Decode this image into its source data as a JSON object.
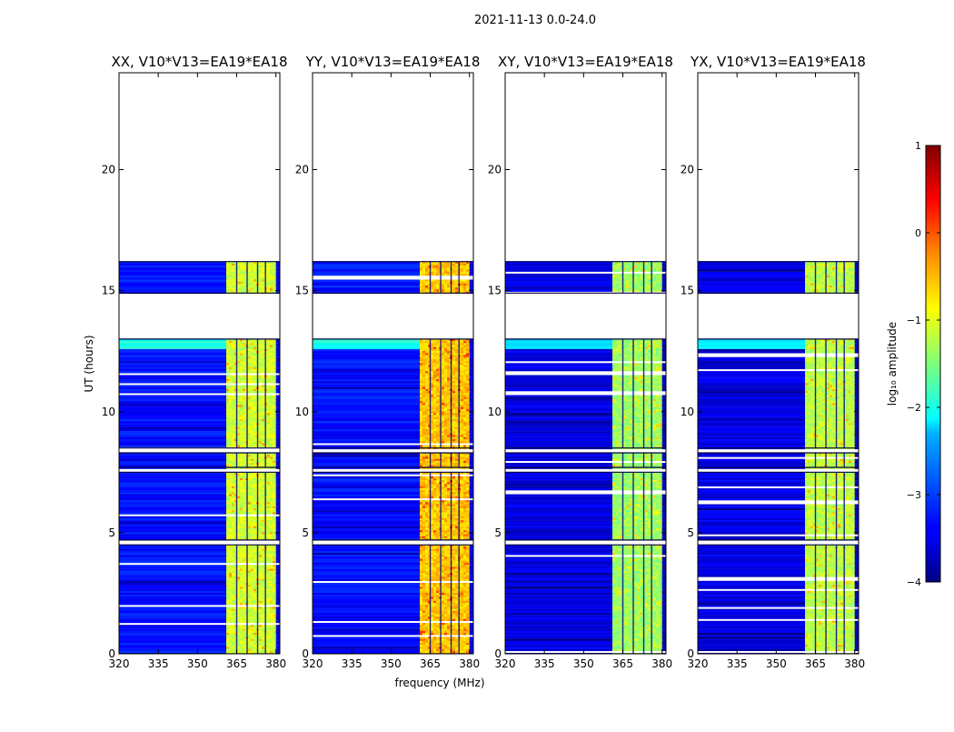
{
  "chart_data": {
    "type": "heatmap",
    "suptitle": "2021-11-13 0.0-24.0",
    "xlabel": "frequency (MHz)",
    "ylabel": "UT (hours)",
    "xlim": [
      320,
      381.5
    ],
    "ylim": [
      0,
      24
    ],
    "x_ticks": [
      320,
      335,
      350,
      365,
      380
    ],
    "x_tick_labels": [
      "320",
      "335",
      "350",
      "365",
      "380"
    ],
    "y_ticks": [
      0,
      5,
      10,
      15,
      20
    ],
    "y_tick_labels": [
      "0",
      "5",
      "10",
      "15",
      "20"
    ],
    "panels": [
      {
        "title": "XX, V10*V13=EA19*EA18",
        "rfi_level": -1.1,
        "bg_level": -3.3
      },
      {
        "title": "YY, V10*V13=EA19*EA18",
        "rfi_level": -0.6,
        "bg_level": -3.3
      },
      {
        "title": "XY, V10*V13=EA19*EA18",
        "rfi_level": -1.35,
        "bg_level": -3.5
      },
      {
        "title": "YX, V10*V13=EA19*EA18",
        "rfi_level": -1.2,
        "bg_level": -3.5
      }
    ],
    "data_segments_ut": [
      [
        0,
        4.5
      ],
      [
        4.7,
        7.5
      ],
      [
        7.7,
        8.3
      ],
      [
        8.5,
        13.0
      ],
      [
        14.9,
        16.2
      ]
    ],
    "rfi_band_mhz": [
      361,
      380
    ],
    "rfi_subband_edges_mhz": [
      365,
      369,
      373,
      376
    ],
    "colorbar": {
      "label": "log₁₀ amplitude",
      "range": [
        -4,
        1
      ],
      "ticks": [
        1,
        0,
        -1,
        -2,
        -3,
        -4
      ],
      "tick_labels": [
        "1",
        "0",
        "−1",
        "−2",
        "−3",
        "−4"
      ],
      "colormap": "jet"
    }
  }
}
